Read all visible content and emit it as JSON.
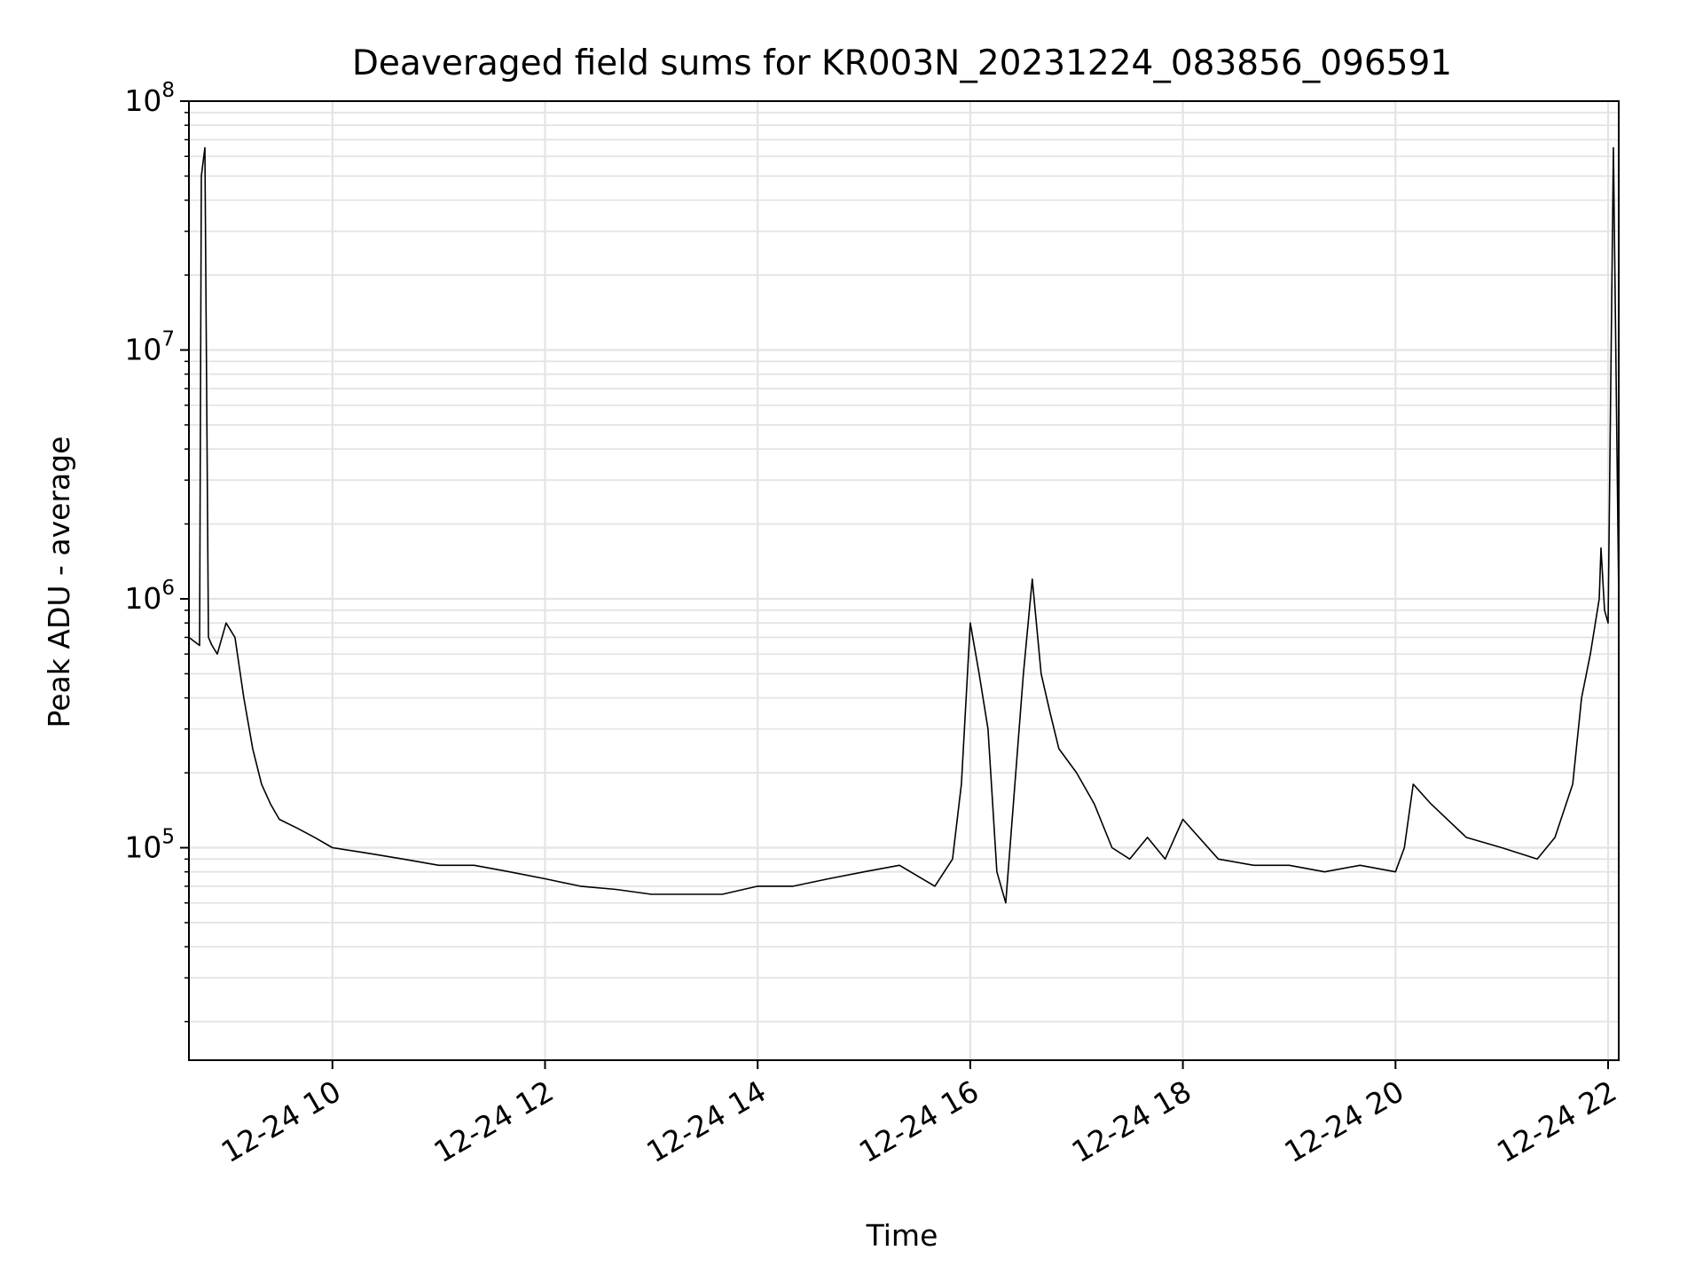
{
  "chart_data": {
    "type": "line",
    "title": "Deaveraged field sums for KR003N_20231224_083856_096591",
    "xlabel": "Time",
    "ylabel": "Peak ADU - average",
    "yscale": "log",
    "xlim": [
      "2023-12-24 08:39",
      "2023-12-24 22:06"
    ],
    "ylim": [
      14000,
      100000000
    ],
    "grid": true,
    "x_ticks": [
      {
        "t": "2023-12-24 10:00",
        "label": "12-24 10"
      },
      {
        "t": "2023-12-24 12:00",
        "label": "12-24 12"
      },
      {
        "t": "2023-12-24 14:00",
        "label": "12-24 14"
      },
      {
        "t": "2023-12-24 16:00",
        "label": "12-24 16"
      },
      {
        "t": "2023-12-24 18:00",
        "label": "12-24 18"
      },
      {
        "t": "2023-12-24 20:00",
        "label": "12-24 20"
      },
      {
        "t": "2023-12-24 22:00",
        "label": "12-24 22"
      }
    ],
    "y_ticks": [
      {
        "value": 100000,
        "base": "10",
        "exp": "5"
      },
      {
        "value": 1000000,
        "base": "10",
        "exp": "6"
      },
      {
        "value": 10000000,
        "base": "10",
        "exp": "7"
      },
      {
        "value": 100000000,
        "base": "10",
        "exp": "8"
      }
    ],
    "series": [
      {
        "color": "#000000",
        "x": [
          "2023-12-24 08:39",
          "2023-12-24 08:45",
          "2023-12-24 08:46",
          "2023-12-24 08:48",
          "2023-12-24 08:50",
          "2023-12-24 08:52",
          "2023-12-24 08:55",
          "2023-12-24 09:00",
          "2023-12-24 09:05",
          "2023-12-24 09:10",
          "2023-12-24 09:15",
          "2023-12-24 09:20",
          "2023-12-24 09:25",
          "2023-12-24 09:30",
          "2023-12-24 09:40",
          "2023-12-24 09:50",
          "2023-12-24 10:00",
          "2023-12-24 10:20",
          "2023-12-24 10:40",
          "2023-12-24 11:00",
          "2023-12-24 11:20",
          "2023-12-24 11:40",
          "2023-12-24 12:00",
          "2023-12-24 12:20",
          "2023-12-24 12:40",
          "2023-12-24 13:00",
          "2023-12-24 13:20",
          "2023-12-24 13:40",
          "2023-12-24 14:00",
          "2023-12-24 14:20",
          "2023-12-24 14:40",
          "2023-12-24 15:00",
          "2023-12-24 15:20",
          "2023-12-24 15:40",
          "2023-12-24 15:50",
          "2023-12-24 15:55",
          "2023-12-24 16:00",
          "2023-12-24 16:05",
          "2023-12-24 16:10",
          "2023-12-24 16:15",
          "2023-12-24 16:20",
          "2023-12-24 16:30",
          "2023-12-24 16:35",
          "2023-12-24 16:40",
          "2023-12-24 16:45",
          "2023-12-24 16:50",
          "2023-12-24 17:00",
          "2023-12-24 17:10",
          "2023-12-24 17:20",
          "2023-12-24 17:30",
          "2023-12-24 17:40",
          "2023-12-24 17:50",
          "2023-12-24 18:00",
          "2023-12-24 18:20",
          "2023-12-24 18:40",
          "2023-12-24 19:00",
          "2023-12-24 19:20",
          "2023-12-24 19:40",
          "2023-12-24 20:00",
          "2023-12-24 20:05",
          "2023-12-24 20:10",
          "2023-12-24 20:20",
          "2023-12-24 20:40",
          "2023-12-24 21:00",
          "2023-12-24 21:20",
          "2023-12-24 21:30",
          "2023-12-24 21:40",
          "2023-12-24 21:45",
          "2023-12-24 21:50",
          "2023-12-24 21:55",
          "2023-12-24 21:56",
          "2023-12-24 21:58",
          "2023-12-24 22:00",
          "2023-12-24 22:03",
          "2023-12-24 22:06"
        ],
        "y": [
          700000,
          650000,
          50000000.0,
          65000000.0,
          700000,
          650000,
          600000,
          800000,
          700000,
          400000,
          250000,
          180000,
          150000,
          130000,
          120000,
          110000,
          100000,
          95000,
          90000,
          85000,
          85000,
          80000,
          75000,
          70000,
          68000,
          65000,
          65000,
          65000,
          70000,
          70000,
          75000,
          80000,
          85000,
          70000,
          90000,
          180000,
          800000,
          500000,
          300000,
          80000,
          60000,
          500000,
          1200000,
          500000,
          350000,
          250000,
          200000,
          150000,
          100000,
          90000,
          110000,
          90000,
          130000,
          90000,
          85000,
          85000,
          80000,
          85000,
          80000,
          100000,
          180000,
          150000,
          110000,
          100000,
          90000,
          110000,
          180000,
          400000,
          600000,
          1000000,
          1600000,
          900000,
          800000,
          65000000.0,
          1000000
        ]
      }
    ]
  }
}
